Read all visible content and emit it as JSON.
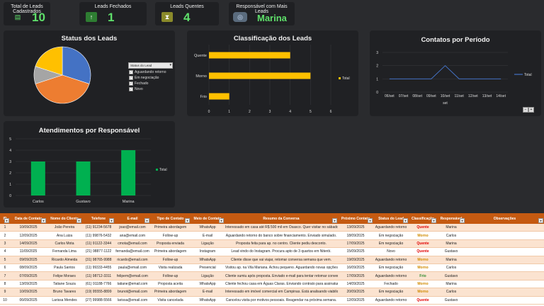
{
  "kpis": [
    {
      "label": "Total de Leads Cadastrados",
      "value": "10",
      "icon": "document-icon",
      "icon_color": "#1f2023",
      "glyph_color": "#5fe06b"
    },
    {
      "label": "Leads Fechados",
      "value": "1",
      "icon": "up-arrow-icon",
      "icon_color": "#2e7d32",
      "glyph_color": "#fff"
    },
    {
      "label": "Leads Quentes",
      "value": "4",
      "icon": "hourglass-icon",
      "icon_color": "#8a8a2a",
      "glyph_color": "#fff"
    },
    {
      "label": "Responsável com Mais Leads",
      "value": "Marina",
      "icon": "globe-icon",
      "icon_color": "#5a6b7d",
      "glyph_color": "#cfe3ff"
    }
  ],
  "charts": {
    "status": {
      "title": "Status dos Leads",
      "filter_label": "Status do Lead",
      "chart_data": {
        "type": "pie",
        "categories": [
          "Aguardando retorno",
          "Em negociação",
          "Fechado",
          "Novo"
        ],
        "values": [
          3,
          4,
          1,
          2
        ],
        "colors": [
          "#4472c4",
          "#ed7d31",
          "#a5a5a5",
          "#ffc000"
        ]
      }
    },
    "classificacao": {
      "title": "Classificação dos Leads",
      "chart_data": {
        "type": "bar",
        "categories": [
          "Quente",
          "Morno",
          "Frio"
        ],
        "series": [
          {
            "name": "Total",
            "values": [
              4,
              5,
              1
            ]
          }
        ],
        "xlim": [
          0,
          6
        ],
        "x_ticks": [
          "0",
          "1",
          "2",
          "3",
          "4",
          "5",
          "6"
        ],
        "color": "#ffc000"
      }
    },
    "contatos": {
      "title": "Contatos por Período",
      "chart_data": {
        "type": "line",
        "categories": [
          "06/set",
          "07/set",
          "08/set",
          "09/set",
          "10/set",
          "11/set",
          "12/set",
          "13/set",
          "14/set"
        ],
        "series": [
          {
            "name": "Total",
            "values": [
              1,
              1,
              1,
              1,
              2,
              1,
              1,
              1,
              1
            ]
          }
        ],
        "xlabel": "set",
        "y_ticks": [
          "0",
          "1",
          "2",
          "3"
        ],
        "ylim": [
          0,
          3
        ],
        "color": "#4472c4"
      }
    },
    "atendimentos": {
      "title": "Atendimentos por Responsável",
      "chart_data": {
        "type": "bar",
        "categories": [
          "Carlos",
          "Gustavo",
          "Marina"
        ],
        "series": [
          {
            "name": "Total",
            "values": [
              3,
              3,
              4
            ]
          }
        ],
        "ylim": [
          0,
          5
        ],
        "y_ticks": [
          "0",
          "1",
          "2",
          "3",
          "4",
          "5"
        ],
        "color": "#00b050"
      }
    }
  },
  "table": {
    "headers": [
      "ID",
      "Data de Contato",
      "Nome do Cliente",
      "Telefone",
      "E-mail",
      "Tipo de Contato",
      "Meio de Contato",
      "Resumo da Conversa",
      "Próximo Contato",
      "Status do Lead",
      "Classificação",
      "Responsável",
      "Observações"
    ],
    "rows": [
      [
        "1",
        "10/09/2025",
        "João Pereira",
        "(11) 91234-5678",
        "joao@email.com",
        "Primeira abordagem",
        "WhatsApp",
        "Interessado em casa até R$ 500 mil em Osasco. Quer visitar no sábado.",
        "13/09/2025",
        "Aguardando retorno",
        "Quente",
        "Marina",
        ""
      ],
      [
        "2",
        "12/09/2025",
        "Ana Luiza",
        "(11) 99876-5432",
        "ana@email.com",
        "Follow-up",
        "E-mail",
        "Aguardando retorno do banco sobre financiamento. Enviado simulado.",
        "18/09/2025",
        "Em negociação",
        "Morno",
        "Carlos",
        ""
      ],
      [
        "3",
        "14/09/2025",
        "Carlos Mota",
        "(11) 91122-3344",
        "cmota@email.com",
        "Proposta enviada",
        "Ligação",
        "Proposta feita para ap. no centro. Cliente pediu desconto.",
        "17/09/2025",
        "Em negociação",
        "Quente",
        "Marina",
        ""
      ],
      [
        "4",
        "11/09/2025",
        "Fernanda Lima",
        "(21) 98877-1122",
        "fernanda@email.com",
        "Primeira abordagem",
        "Instagram",
        "Lead vindo do Instagram. Procura apto de 3 quartos em Niterói.",
        "15/09/2025",
        "Novo",
        "Quente",
        "Gustavo",
        ""
      ],
      [
        "5",
        "09/09/2025",
        "Ricardo Almeida",
        "(31) 98765-9988",
        "ricardo@email.com",
        "Follow-up",
        "WhatsApp",
        "Cliente disse que vai viajar, retomar conversa semana que vem.",
        "19/09/2025",
        "Aguardando retorno",
        "Morno",
        "Marina",
        ""
      ],
      [
        "6",
        "08/09/2025",
        "Paula Santos",
        "(11) 99333-4455",
        "paula@email.com",
        "Visita realizada",
        "Presencial",
        "Visitou ap. na Vila Mariana. Achou pequeno. Aguardando novas opções.",
        "16/09/2025",
        "Em negociação",
        "Morno",
        "Carlos",
        ""
      ],
      [
        "7",
        "07/09/2025",
        "Felipe Moraes",
        "(11) 98712-3311",
        "felipem@email.com",
        "Follow-up",
        "Ligação",
        "Cliente sumiu após proposta. Enviado e-mail para tentar retomar conversa.",
        "17/09/2025",
        "Aguardando retorno",
        "Frio",
        "Gustavo",
        ""
      ],
      [
        "8",
        "13/09/2025",
        "Tatiane Souza",
        "(61) 91188-7766",
        "tatiane@email.com",
        "Proposta aceita",
        "WhatsApp",
        "Cliente fechou casa em Águas Claras. Enviando contrato para assinatura.",
        "14/09/2025",
        "Fechado",
        "Morno",
        "Marina",
        ""
      ],
      [
        "9",
        "10/09/2025",
        "Bruno Tavares",
        "(19) 95555-8899",
        "brunot@email.com",
        "Primeira abordagem",
        "E-mail",
        "Interessado em imóvel comercial em Campinas. Está analisando viabilidade.",
        "20/09/2025",
        "Em negociação",
        "Morno",
        "Carlos",
        ""
      ],
      [
        "10",
        "06/09/2025",
        "Larissa Mendes",
        "(27) 99988-5566",
        "larissa@email.com",
        "Visita cancelada",
        "WhatsApp",
        "Cancelou visita por motivos pessoais. Reagendar na próxima semana.",
        "12/09/2025",
        "Aguardando retorno",
        "Quente",
        "Gustavo",
        ""
      ]
    ]
  }
}
